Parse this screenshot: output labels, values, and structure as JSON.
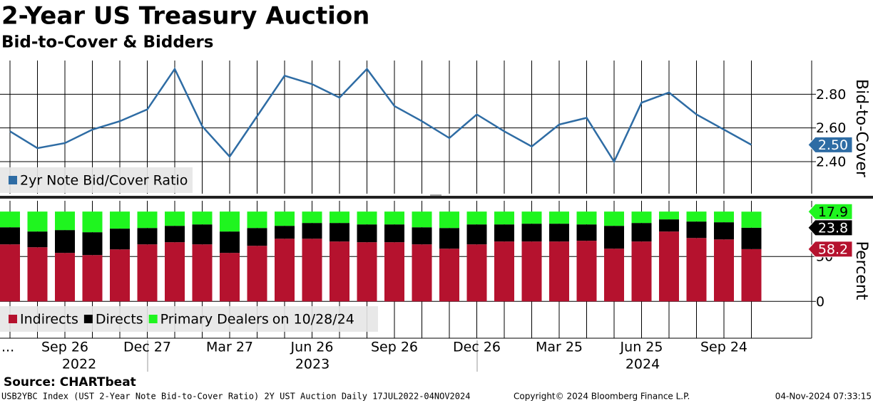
{
  "title": "2-Year US Treasury Auction",
  "subtitle": "Bid-to-Cover & Bidders",
  "source": "Source: CHARTbeat",
  "footer": {
    "left": "USB2YBC Index (UST 2-Year Note Bid-to-Cover Ratio) 2Y UST Auction  Daily 17JUL2022-04NOV2024",
    "center": "Copyright© 2024 Bloomberg Finance L.P.",
    "right": "04-Nov-2024 07:33:15"
  },
  "chart_data": [
    {
      "type": "line",
      "y_label": "Bid-to-Cover",
      "ylim": [
        2.21,
        3.0
      ],
      "yticks": [
        {
          "value": 2.4,
          "label": "2.40"
        },
        {
          "value": 2.6,
          "label": "2.60"
        },
        {
          "value": 2.8,
          "label": "2.80"
        }
      ],
      "grid": true,
      "legend": "bottom-left",
      "series": [
        {
          "name": "2yr Note Bid/Cover Ratio",
          "color": "#2e6ca4",
          "values": [
            2.58,
            2.48,
            2.51,
            2.59,
            2.64,
            2.71,
            2.95,
            2.61,
            2.43,
            2.67,
            2.91,
            2.86,
            2.78,
            2.95,
            2.73,
            2.64,
            2.54,
            2.68,
            2.58,
            2.49,
            2.62,
            2.66,
            2.4,
            2.75,
            2.81,
            2.68,
            2.59,
            2.5
          ],
          "value_labels": {
            "27": "2.50"
          }
        }
      ]
    },
    {
      "type": "stacked_bar",
      "y_label": "Percent",
      "ylim": [
        -41,
        112
      ],
      "yticks": [
        0,
        50
      ],
      "grid": true,
      "legend": "bottom-left",
      "legend_note": "on 10/28/24",
      "categories": [
        "...",
        null,
        "Sep 26",
        null,
        null,
        "Dec 27",
        null,
        null,
        "Mar 27",
        null,
        null,
        "Jun 26",
        null,
        null,
        "Sep 26",
        null,
        null,
        "Dec 26",
        null,
        null,
        "Mar 25",
        null,
        null,
        "Jun 25",
        null,
        null,
        "Sep 24",
        null
      ],
      "x_groups": [
        "2022",
        "2023",
        "2024"
      ],
      "series": [
        {
          "name": "Indirects",
          "color": "#b5122e",
          "values": [
            63.5,
            60.3,
            54.0,
            51.6,
            57.9,
            63.5,
            65.9,
            63.5,
            54.0,
            61.9,
            69.8,
            69.8,
            66.7,
            65.9,
            65.9,
            63.5,
            58.7,
            63.5,
            66.7,
            66.7,
            66.7,
            67.5,
            58.7,
            66.7,
            77.8,
            70.6,
            69.0,
            58.2
          ]
        },
        {
          "name": "Directs",
          "color": "#000000",
          "values": [
            19.0,
            17.5,
            25.4,
            25.4,
            23.1,
            18.2,
            18.2,
            22.2,
            23.8,
            19.8,
            14.3,
            17.5,
            20.6,
            19.8,
            19.8,
            19.0,
            23.0,
            22.2,
            19.0,
            19.8,
            19.8,
            18.2,
            25.4,
            20.6,
            13.5,
            18.3,
            19.1,
            23.8
          ]
        },
        {
          "name": "Primary Dealers",
          "color": "#1ff51f",
          "values": [
            17.5,
            22.2,
            20.6,
            23.0,
            19.0,
            18.3,
            15.9,
            14.3,
            22.2,
            18.3,
            15.9,
            12.7,
            12.7,
            14.3,
            14.3,
            17.5,
            18.3,
            14.3,
            14.3,
            13.5,
            13.5,
            14.3,
            15.9,
            12.7,
            8.7,
            11.1,
            11.9,
            17.9
          ]
        }
      ]
    }
  ]
}
